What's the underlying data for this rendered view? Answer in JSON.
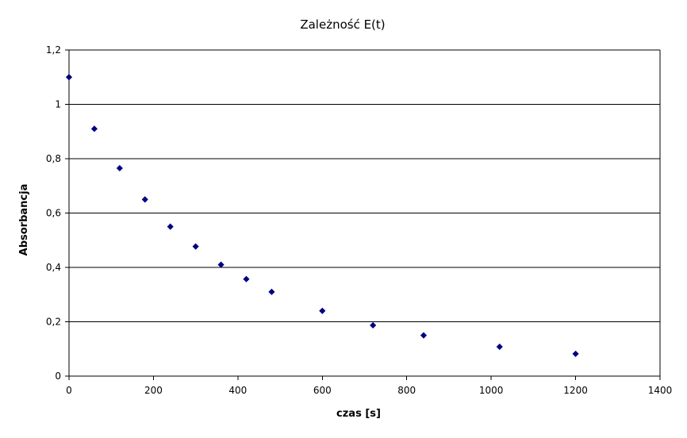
{
  "chart_data": {
    "type": "scatter",
    "title": "Zależność E(t)",
    "xlabel": "czas [s]",
    "ylabel": "Absorbancja",
    "xlim": [
      0,
      1400
    ],
    "ylim": [
      0,
      1.2
    ],
    "x_ticks": [
      0,
      200,
      400,
      600,
      800,
      1000,
      1200,
      1400
    ],
    "y_ticks": [
      0,
      0.2,
      0.4,
      0.6,
      0.8,
      1,
      1.2
    ],
    "x_tick_labels": [
      "0",
      "200",
      "400",
      "600",
      "800",
      "1000",
      "1200",
      "1400"
    ],
    "y_tick_labels": [
      "0",
      "0,2",
      "0,4",
      "0,6",
      "0,8",
      "1",
      "1,2"
    ],
    "grid": "horizontal",
    "legend": "none",
    "marker": "diamond",
    "marker_color": "#000080",
    "series": [
      {
        "x": [
          0,
          60,
          120,
          180,
          240,
          300,
          360,
          420,
          480,
          600,
          720,
          840,
          1020,
          1200
        ],
        "y": [
          1.1,
          0.91,
          0.765,
          0.65,
          0.55,
          0.477,
          0.41,
          0.357,
          0.31,
          0.24,
          0.187,
          0.15,
          0.108,
          0.082
        ]
      }
    ]
  }
}
